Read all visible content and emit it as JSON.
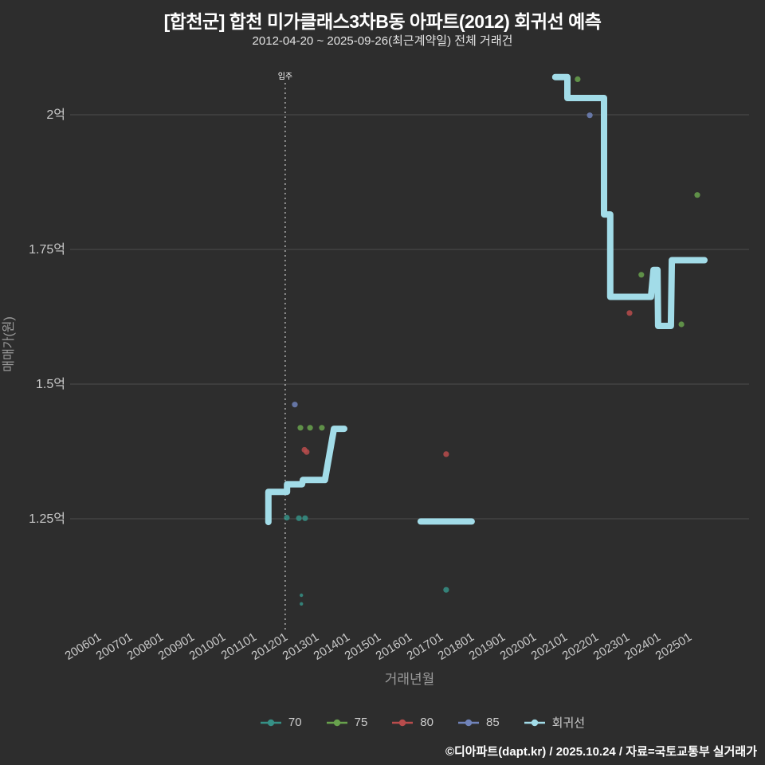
{
  "header": {
    "title": "[합천군] 합천 미가클래스3차B동 아파트(2012) 회귀선 예측",
    "subtitle": "2012-04-20 ~ 2025-09-26(최근계약일) 전체 거래건"
  },
  "footer": {
    "credit": "©디아파트(dapt.kr) / 2025.10.24 / 자료=국토교통부 실거래가"
  },
  "chart_data": {
    "type": "scatter",
    "title": "[합천군] 합천 미가클래스3차B동 아파트(2012) 회귀선 예측",
    "subtitle": "2012-04-20 ~ 2025-09-26(최근계약일) 전체 거래건",
    "xlabel": "거래년월",
    "ylabel": "매매가(원)",
    "y_unit": "억원",
    "grid": true,
    "legend_position": "bottom",
    "xlim": [
      2005.2,
      2026.3
    ],
    "ylim": [
      1.05,
      2.12
    ],
    "x_ticks": [
      "200601",
      "200701",
      "200801",
      "200901",
      "201001",
      "201101",
      "201201",
      "201301",
      "201401",
      "201501",
      "201601",
      "201701",
      "201801",
      "201901",
      "202001",
      "202101",
      "202201",
      "202301",
      "202401",
      "202501"
    ],
    "y_ticks": [
      {
        "value": 2.0,
        "label": "2억"
      },
      {
        "value": 1.75,
        "label": "1.75억"
      },
      {
        "value": 1.5,
        "label": "1.5억"
      },
      {
        "value": 1.25,
        "label": "1.25억"
      }
    ],
    "annotation": {
      "label": "입주",
      "x": 2012.1
    },
    "style": {
      "background": "#2d2d2d",
      "grid_color": "#4d4d4d",
      "tick_color": "#c9c9c9",
      "axis_label_color": "#9b9b9b",
      "annotation_color": "#d0d0d0"
    },
    "series": [
      {
        "name": "70",
        "color": "#369086",
        "points": [
          [
            2012.15,
            1.252
          ],
          [
            2012.54,
            1.251
          ],
          [
            2012.74,
            1.251
          ],
          [
            2012.62,
            1.108,
            2.2
          ],
          [
            2012.62,
            1.092,
            2.2
          ],
          [
            2017.28,
            1.118
          ]
        ]
      },
      {
        "name": "75",
        "color": "#68a24d",
        "points": [
          [
            2012.59,
            1.419
          ],
          [
            2012.9,
            1.419
          ],
          [
            2013.28,
            1.419
          ],
          [
            2021.51,
            2.066
          ],
          [
            2023.56,
            1.703
          ],
          [
            2024.85,
            1.611
          ],
          [
            2025.36,
            1.851
          ]
        ]
      },
      {
        "name": "80",
        "color": "#b84c4c",
        "points": [
          [
            2012.72,
            1.378
          ],
          [
            2012.79,
            1.374
          ],
          [
            2017.28,
            1.37
          ],
          [
            2023.18,
            1.632
          ]
        ]
      },
      {
        "name": "85",
        "color": "#7083ba",
        "points": [
          [
            2012.41,
            1.462
          ],
          [
            2021.9,
            1.999
          ]
        ]
      }
    ],
    "regression": {
      "name": "회귀선",
      "color": "#a2dce8",
      "segments": [
        [
          [
            2011.56,
            1.244
          ],
          [
            2011.56,
            1.3
          ],
          [
            2012.16,
            1.3
          ],
          [
            2012.16,
            1.314
          ],
          [
            2012.64,
            1.314
          ],
          [
            2012.67,
            1.322
          ],
          [
            2013.38,
            1.322
          ],
          [
            2013.67,
            1.417
          ],
          [
            2014.0,
            1.417
          ]
        ],
        [
          [
            2016.46,
            1.245
          ],
          [
            2018.1,
            1.245
          ]
        ],
        [
          [
            2020.79,
            2.07
          ],
          [
            2021.18,
            2.07
          ],
          [
            2021.18,
            2.031
          ],
          [
            2022.36,
            2.031
          ],
          [
            2022.36,
            1.815
          ],
          [
            2022.56,
            1.815
          ],
          [
            2022.56,
            1.662
          ],
          [
            2023.87,
            1.662
          ],
          [
            2023.95,
            1.712
          ],
          [
            2024.08,
            1.712
          ],
          [
            2024.1,
            1.608
          ],
          [
            2024.51,
            1.608
          ],
          [
            2024.54,
            1.73
          ],
          [
            2025.59,
            1.73
          ]
        ]
      ]
    }
  }
}
